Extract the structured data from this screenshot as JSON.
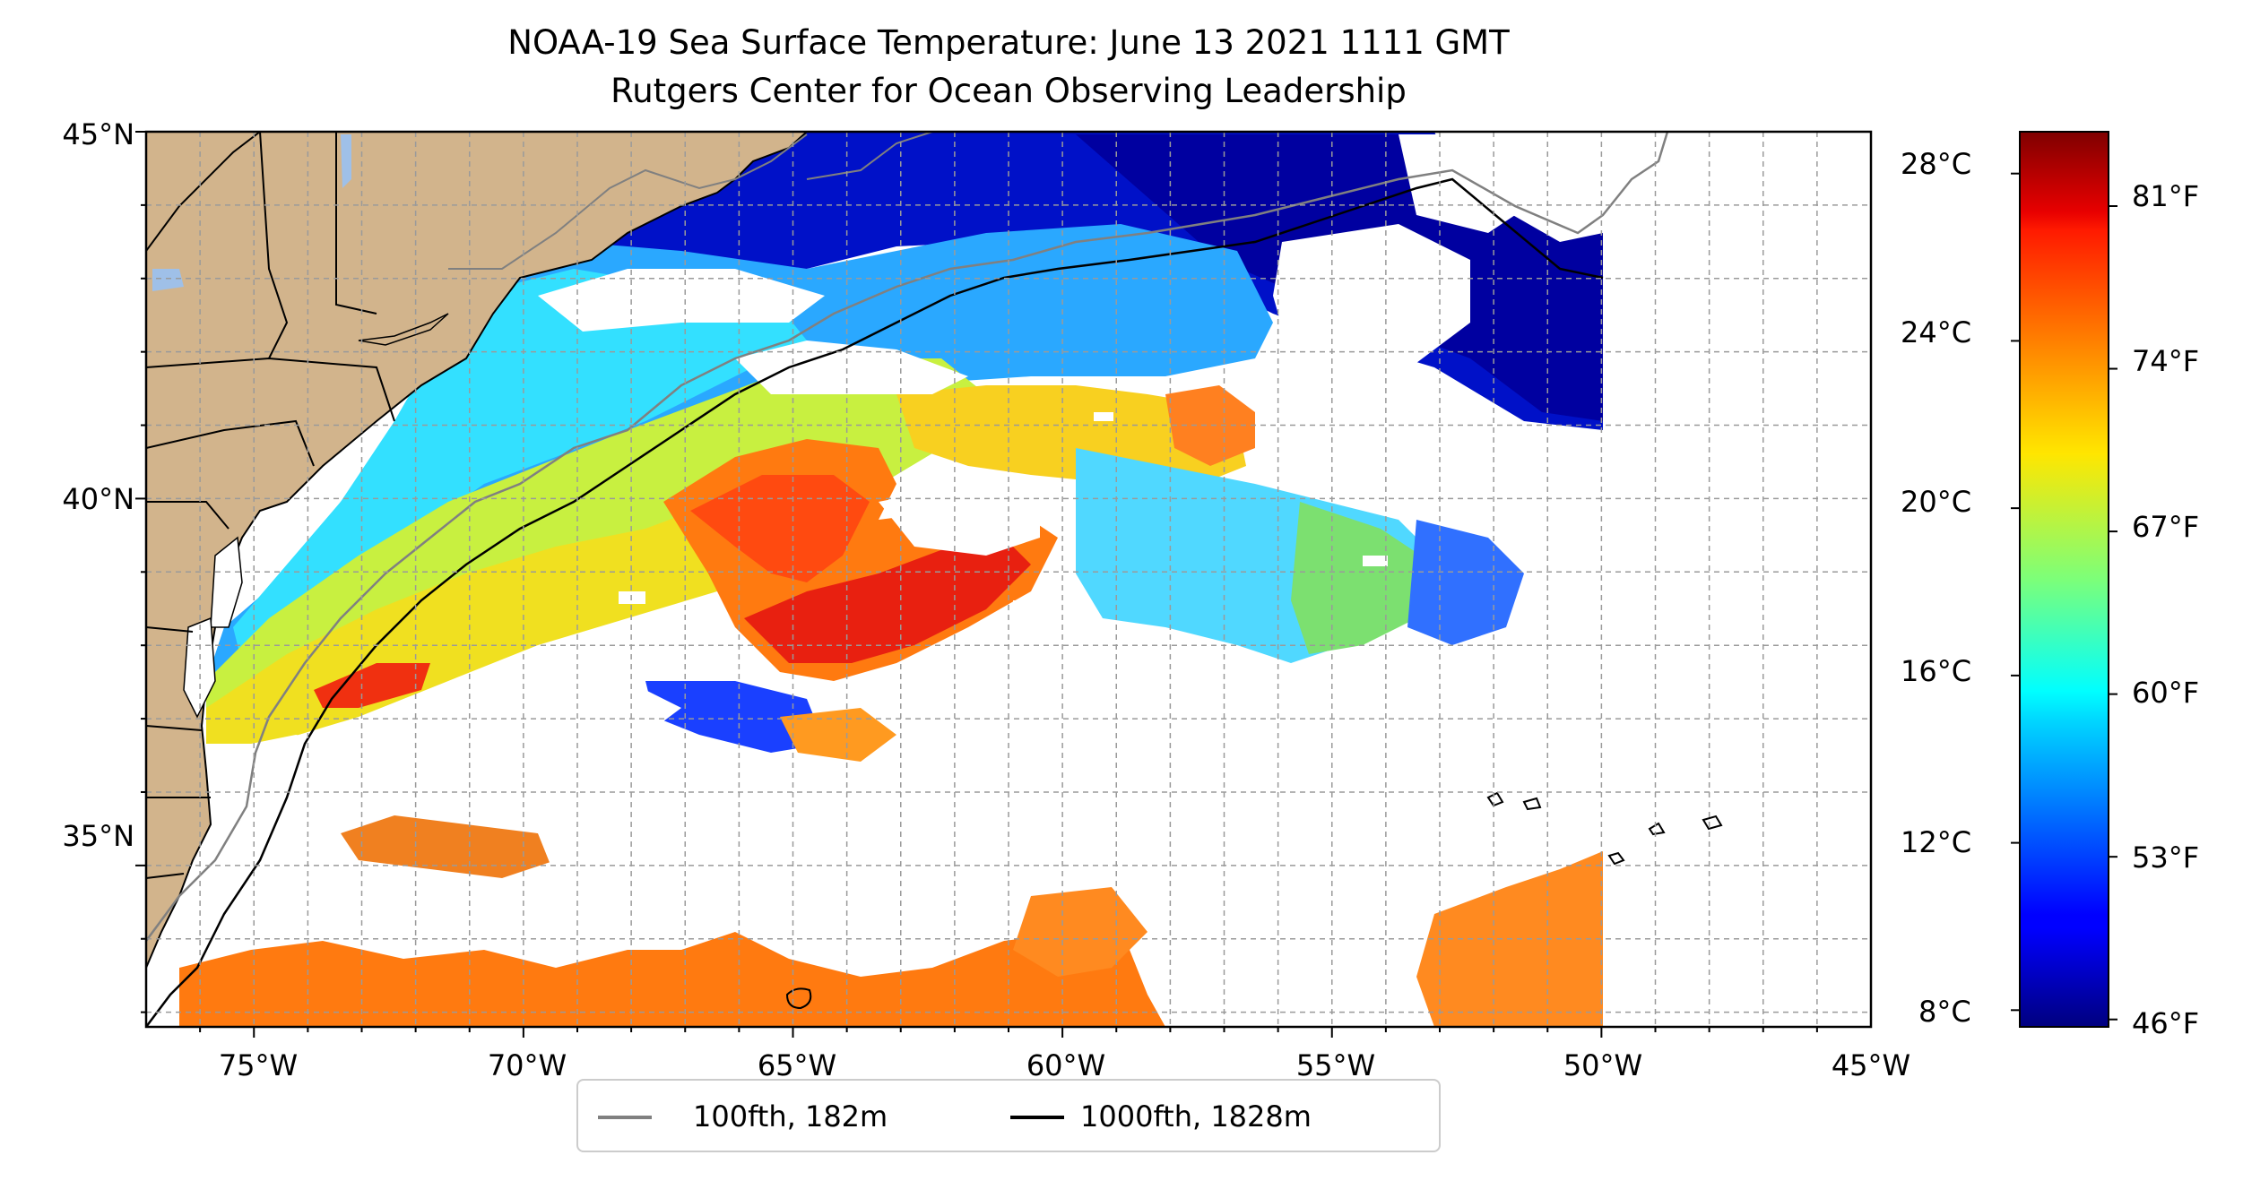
{
  "title": {
    "line1": "NOAA-19 Sea Surface Temperature: June 13 2021 1111 GMT",
    "line2": "Rutgers Center for Ocean Observing Leadership"
  },
  "chart_data": {
    "type": "heatmap",
    "map_extent": {
      "lon": [
        -77,
        -45
      ],
      "lat": [
        32.8,
        45
      ]
    },
    "data_extent_lon_east": -50,
    "lat_tick_labels": [
      "45°N",
      "40°N",
      "35°N"
    ],
    "lon_tick_labels": [
      "75°W",
      "70°W",
      "65°W",
      "60°W",
      "55°W",
      "50°W",
      "45°W"
    ],
    "grid": true,
    "colorbar": {
      "colormap": "jet",
      "range_celsius": [
        7.6,
        29
      ],
      "celsius_labels": [
        "28°C",
        "24°C",
        "20°C",
        "16°C",
        "12°C",
        "8°C"
      ],
      "fahrenheit_labels": [
        "81°F",
        "74°F",
        "67°F",
        "60°F",
        "53°F",
        "46°F"
      ]
    },
    "legend": {
      "placement": "bottom-center",
      "entries": [
        {
          "label": "100fth, 182m",
          "color": "#808080"
        },
        {
          "label": "1000fth, 1828m",
          "color": "#000000"
        }
      ]
    },
    "land_color": "#d2b48c"
  }
}
